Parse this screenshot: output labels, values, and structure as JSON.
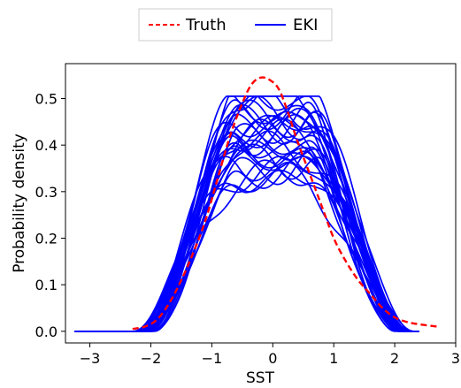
{
  "chart_data": {
    "type": "line",
    "title": "",
    "xlabel": "SST",
    "ylabel": "Probability density",
    "xlim": [
      -3.4,
      3.0
    ],
    "ylim": [
      -0.025,
      0.575
    ],
    "xticks": [
      -3,
      -2,
      -1,
      0,
      1,
      2,
      3
    ],
    "xtick_labels": [
      "−3",
      "−2",
      "−1",
      "0",
      "1",
      "2",
      "3"
    ],
    "yticks": [
      0.0,
      0.1,
      0.2,
      0.3,
      0.4,
      0.5
    ],
    "ytick_labels": [
      "0.0",
      "0.1",
      "0.2",
      "0.3",
      "0.4",
      "0.5"
    ],
    "grid": false,
    "legend": {
      "placement": "top-center-outside",
      "entries": [
        {
          "label": "Truth",
          "color": "#ff0000",
          "style": "dashed"
        },
        {
          "label": "EKI",
          "color": "#0000ff",
          "style": "solid"
        }
      ]
    },
    "series": [
      {
        "name": "Truth",
        "color": "#ff0000",
        "style": "dashed",
        "x": [
          -2.3,
          -2.1,
          -1.9,
          -1.7,
          -1.5,
          -1.3,
          -1.1,
          -0.9,
          -0.7,
          -0.5,
          -0.35,
          -0.2,
          -0.05,
          0.1,
          0.25,
          0.4,
          0.6,
          0.8,
          1.0,
          1.2,
          1.4,
          1.6,
          1.8,
          2.0,
          2.2,
          2.4,
          2.7
        ],
        "y": [
          0.005,
          0.01,
          0.025,
          0.06,
          0.11,
          0.17,
          0.24,
          0.33,
          0.42,
          0.49,
          0.53,
          0.545,
          0.54,
          0.52,
          0.47,
          0.41,
          0.34,
          0.27,
          0.2,
          0.15,
          0.11,
          0.08,
          0.05,
          0.03,
          0.02,
          0.015,
          0.01
        ]
      },
      {
        "name": "EKI",
        "color": "#0000ff",
        "style": "solid",
        "ensemble": [
          {
            "scale": 0.7,
            "left": 1.0,
            "right": 1.0,
            "center": 0.0
          },
          {
            "scale": 0.72,
            "left": 1.03,
            "right": 0.98,
            "center": 0.02
          },
          {
            "scale": 0.74,
            "left": 0.97,
            "right": 1.02,
            "center": -0.03
          },
          {
            "scale": 0.76,
            "left": 1.05,
            "right": 1.05,
            "center": 0.04
          },
          {
            "scale": 0.78,
            "left": 0.95,
            "right": 0.96,
            "center": -0.02
          },
          {
            "scale": 0.8,
            "left": 1.02,
            "right": 1.07,
            "center": 0.03
          },
          {
            "scale": 0.82,
            "left": 0.99,
            "right": 0.94,
            "center": -0.05
          },
          {
            "scale": 0.84,
            "left": 1.08,
            "right": 1.01,
            "center": 0.05
          },
          {
            "scale": 0.86,
            "left": 0.93,
            "right": 1.03,
            "center": 0.01
          },
          {
            "scale": 0.88,
            "left": 1.01,
            "right": 0.99,
            "center": -0.01
          },
          {
            "scale": 0.9,
            "left": 1.04,
            "right": 1.06,
            "center": 0.06
          },
          {
            "scale": 0.92,
            "left": 0.96,
            "right": 0.97,
            "center": -0.04
          },
          {
            "scale": 0.94,
            "left": 1.06,
            "right": 1.02,
            "center": 0.02
          },
          {
            "scale": 0.96,
            "left": 0.98,
            "right": 1.04,
            "center": -0.06
          },
          {
            "scale": 0.98,
            "left": 1.0,
            "right": 0.95,
            "center": 0.0
          },
          {
            "scale": 1.0,
            "left": 1.03,
            "right": 1.03,
            "center": 0.03
          },
          {
            "scale": 1.02,
            "left": 0.94,
            "right": 1.0,
            "center": -0.03
          },
          {
            "scale": 1.04,
            "left": 1.07,
            "right": 0.98,
            "center": 0.04
          },
          {
            "scale": 1.06,
            "left": 0.99,
            "right": 1.05,
            "center": -0.02
          },
          {
            "scale": 1.08,
            "left": 1.02,
            "right": 1.01,
            "center": 0.01
          },
          {
            "scale": 1.1,
            "left": 0.97,
            "right": 0.97,
            "center": -0.01
          },
          {
            "scale": 0.83,
            "left": 1.09,
            "right": 1.08,
            "center": 0.07
          },
          {
            "scale": 0.91,
            "left": 0.92,
            "right": 1.04,
            "center": -0.07
          },
          {
            "scale": 0.97,
            "left": 1.05,
            "right": 0.93,
            "center": 0.05
          },
          {
            "scale": 1.05,
            "left": 1.01,
            "right": 1.07,
            "center": -0.05
          },
          {
            "scale": 0.73,
            "left": 0.95,
            "right": 1.0,
            "center": 0.02
          },
          {
            "scale": 0.99,
            "left": 1.04,
            "right": 0.99,
            "center": -0.02
          },
          {
            "scale": 0.87,
            "left": 0.98,
            "right": 1.02,
            "center": 0.0
          },
          {
            "scale": 1.01,
            "left": 1.0,
            "right": 1.0,
            "center": 0.0
          },
          {
            "scale": 0.79,
            "left": 1.06,
            "right": 1.06,
            "center": 0.03
          }
        ],
        "notes": ""
      }
    ]
  }
}
